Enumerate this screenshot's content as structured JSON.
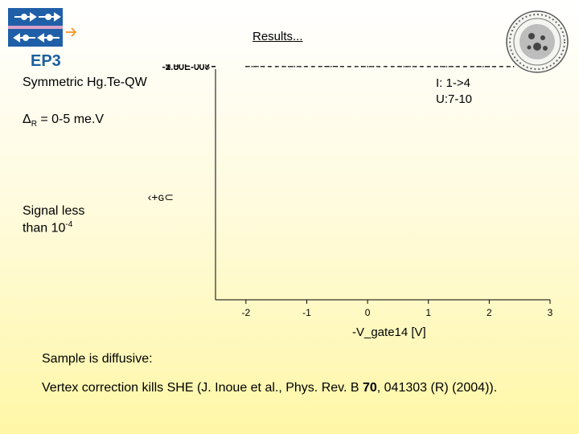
{
  "slide": {
    "logo_text": "EP3",
    "title": "Results...",
    "left_text": {
      "line1": "Symmetric Hg.Te-QW",
      "line2_prefix": "Δ",
      "line2_sub": "R",
      "line2_suffix": " = 0-5 me.V",
      "line3": "Signal less",
      "line4_prefix": "than 10",
      "line4_sup": "-4"
    },
    "bottom_text": {
      "line1": "Sample is diffusive:",
      "line2_prefix": "Vertex correction kills SHE (J. Inoue et al., Phys. Rev. B ",
      "line2_bold": "70",
      "line2_suffix": ", 041303 (R) (2004))."
    },
    "colors": {
      "accent_blue": "#1f5fa8",
      "logo_text": "#1a5fa0",
      "arrow": "#f2a23a"
    }
  },
  "chart_data": {
    "type": "line",
    "style": "dashed",
    "title": "",
    "xlabel": "-V_gate14 [V]",
    "ylabel": "",
    "y_axis_label_garbled": "⊃ ‹+ԍ⊂",
    "xlim": [
      -2.5,
      3.0
    ],
    "ylim": [
      -0.000325,
      -3.75e-06
    ],
    "x_ticks": [
      -2,
      -1,
      0,
      1,
      2,
      3
    ],
    "x_tick_labels": [
      "-2",
      "-1",
      "0",
      "1",
      "2",
      "3"
    ],
    "y_ticks": [
      -5e-08,
      -1e-07,
      -1.5e-07,
      -2e-07,
      -2.5e-07,
      -3e-07
    ],
    "y_tick_labels": [
      "-5.00E-008",
      "-1.00E-007",
      "-1.50E-007",
      "-2.00E-007",
      "-2.50E-007",
      "-3.00E-007"
    ],
    "legend": [
      "I: 1->4",
      "U:7-10"
    ],
    "series": [
      {
        "name": "I: 1->4, U:7-10",
        "x": [
          -2.0,
          -1.9,
          -1.8,
          -1.7,
          -1.6,
          -1.5,
          -1.4,
          -1.3,
          -1.2,
          -1.1,
          -1.0,
          -0.9,
          -0.8,
          -0.7,
          -0.6,
          -0.5,
          -0.4,
          -0.3,
          -0.2,
          -0.1,
          0.0,
          0.1,
          0.2,
          0.3,
          0.4,
          0.5,
          0.6,
          0.7,
          0.8,
          0.9,
          1.0,
          1.1,
          1.2,
          1.3,
          1.4,
          1.5,
          1.6,
          1.7,
          1.8,
          1.9,
          2.0,
          2.1,
          2.2,
          2.3,
          2.4
        ],
        "values": [
          -1.1e-07,
          -2e-07,
          -1.2e-07,
          -1.9e-07,
          -1.4e-07,
          -2.3e-07,
          -1.3e-07,
          -2.2e-07,
          -1.5e-07,
          -2.1e-07,
          -1.4e-07,
          -2.2e-07,
          -1.6e-07,
          -1e-07,
          -1.7e-07,
          -5.5e-08,
          -1.6e-07,
          -2.4e-07,
          -1.8e-07,
          -1.4e-07,
          -2.3e-07,
          -1.5e-07,
          -2.5e-07,
          -1.6e-07,
          -2.2e-07,
          -1.4e-07,
          -2.6e-07,
          -1.8e-07,
          -2.3e-07,
          -1.5e-07,
          -2.2e-07,
          -2.7e-07,
          -1.8e-07,
          -2.8e-07,
          -1.9e-07,
          -2.5e-07,
          -2.1e-07,
          -2.9e-07,
          -2.2e-07,
          -2.6e-07,
          -2.1e-07,
          -2.7e-07,
          -1.8e-07,
          -2.5e-07,
          -2.2e-07
        ]
      }
    ]
  }
}
